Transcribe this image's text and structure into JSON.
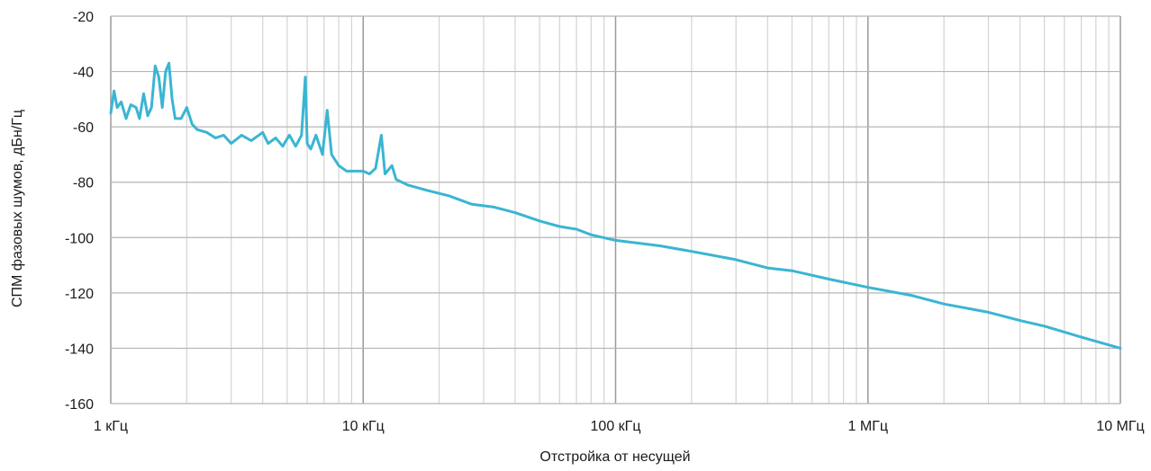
{
  "chart_data": {
    "type": "line",
    "title": "",
    "xlabel": "Отстройка от несущей",
    "ylabel": "СПМ фазовых шумов, дБн/Гц",
    "x_scale": "log",
    "x_unit": "Hz",
    "xlim": [
      1000,
      10000000
    ],
    "ylim": [
      -160,
      -20
    ],
    "grid": true,
    "legend": "none",
    "x_ticks": [
      {
        "value": 1000,
        "label": "1 кГц"
      },
      {
        "value": 10000,
        "label": "10 кГц"
      },
      {
        "value": 100000,
        "label": "100 кГц"
      },
      {
        "value": 1000000,
        "label": "1 МГц"
      },
      {
        "value": 10000000,
        "label": "10 МГц"
      }
    ],
    "y_ticks": [
      -20,
      -40,
      -60,
      -80,
      -100,
      -120,
      -140,
      -160
    ],
    "series": [
      {
        "color": "#3ab5d2",
        "points": [
          [
            1000,
            -55
          ],
          [
            1030,
            -47
          ],
          [
            1060,
            -53
          ],
          [
            1100,
            -51
          ],
          [
            1150,
            -57
          ],
          [
            1200,
            -52
          ],
          [
            1260,
            -53
          ],
          [
            1300,
            -57
          ],
          [
            1350,
            -48
          ],
          [
            1400,
            -56
          ],
          [
            1450,
            -53
          ],
          [
            1500,
            -38
          ],
          [
            1550,
            -42
          ],
          [
            1600,
            -53
          ],
          [
            1650,
            -40
          ],
          [
            1700,
            -37
          ],
          [
            1750,
            -50
          ],
          [
            1800,
            -57
          ],
          [
            1900,
            -57
          ],
          [
            2000,
            -53
          ],
          [
            2100,
            -59
          ],
          [
            2200,
            -61
          ],
          [
            2400,
            -62
          ],
          [
            2600,
            -64
          ],
          [
            2800,
            -63
          ],
          [
            3000,
            -66
          ],
          [
            3300,
            -63
          ],
          [
            3600,
            -65
          ],
          [
            4000,
            -62
          ],
          [
            4200,
            -66
          ],
          [
            4500,
            -64
          ],
          [
            4800,
            -67
          ],
          [
            5100,
            -63
          ],
          [
            5400,
            -67
          ],
          [
            5700,
            -63
          ],
          [
            5900,
            -42
          ],
          [
            6000,
            -66
          ],
          [
            6200,
            -68
          ],
          [
            6500,
            -63
          ],
          [
            6900,
            -70
          ],
          [
            7200,
            -54
          ],
          [
            7500,
            -70
          ],
          [
            8000,
            -74
          ],
          [
            8600,
            -76
          ],
          [
            9200,
            -76
          ],
          [
            10000,
            -76
          ],
          [
            10600,
            -77
          ],
          [
            11200,
            -75
          ],
          [
            11800,
            -63
          ],
          [
            12200,
            -77
          ],
          [
            13000,
            -74
          ],
          [
            13500,
            -79
          ],
          [
            15000,
            -81
          ],
          [
            18000,
            -83
          ],
          [
            22000,
            -85
          ],
          [
            27000,
            -88
          ],
          [
            33000,
            -89
          ],
          [
            40000,
            -91
          ],
          [
            50000,
            -94
          ],
          [
            60000,
            -96
          ],
          [
            70000,
            -97
          ],
          [
            80000,
            -99
          ],
          [
            100000,
            -101
          ],
          [
            150000,
            -103
          ],
          [
            200000,
            -105
          ],
          [
            300000,
            -108
          ],
          [
            400000,
            -111
          ],
          [
            500000,
            -112
          ],
          [
            700000,
            -115
          ],
          [
            1000000,
            -118
          ],
          [
            1500000,
            -121
          ],
          [
            2000000,
            -124
          ],
          [
            3000000,
            -127
          ],
          [
            4000000,
            -130
          ],
          [
            5000000,
            -132
          ],
          [
            7000000,
            -136
          ],
          [
            10000000,
            -140
          ]
        ]
      }
    ]
  }
}
